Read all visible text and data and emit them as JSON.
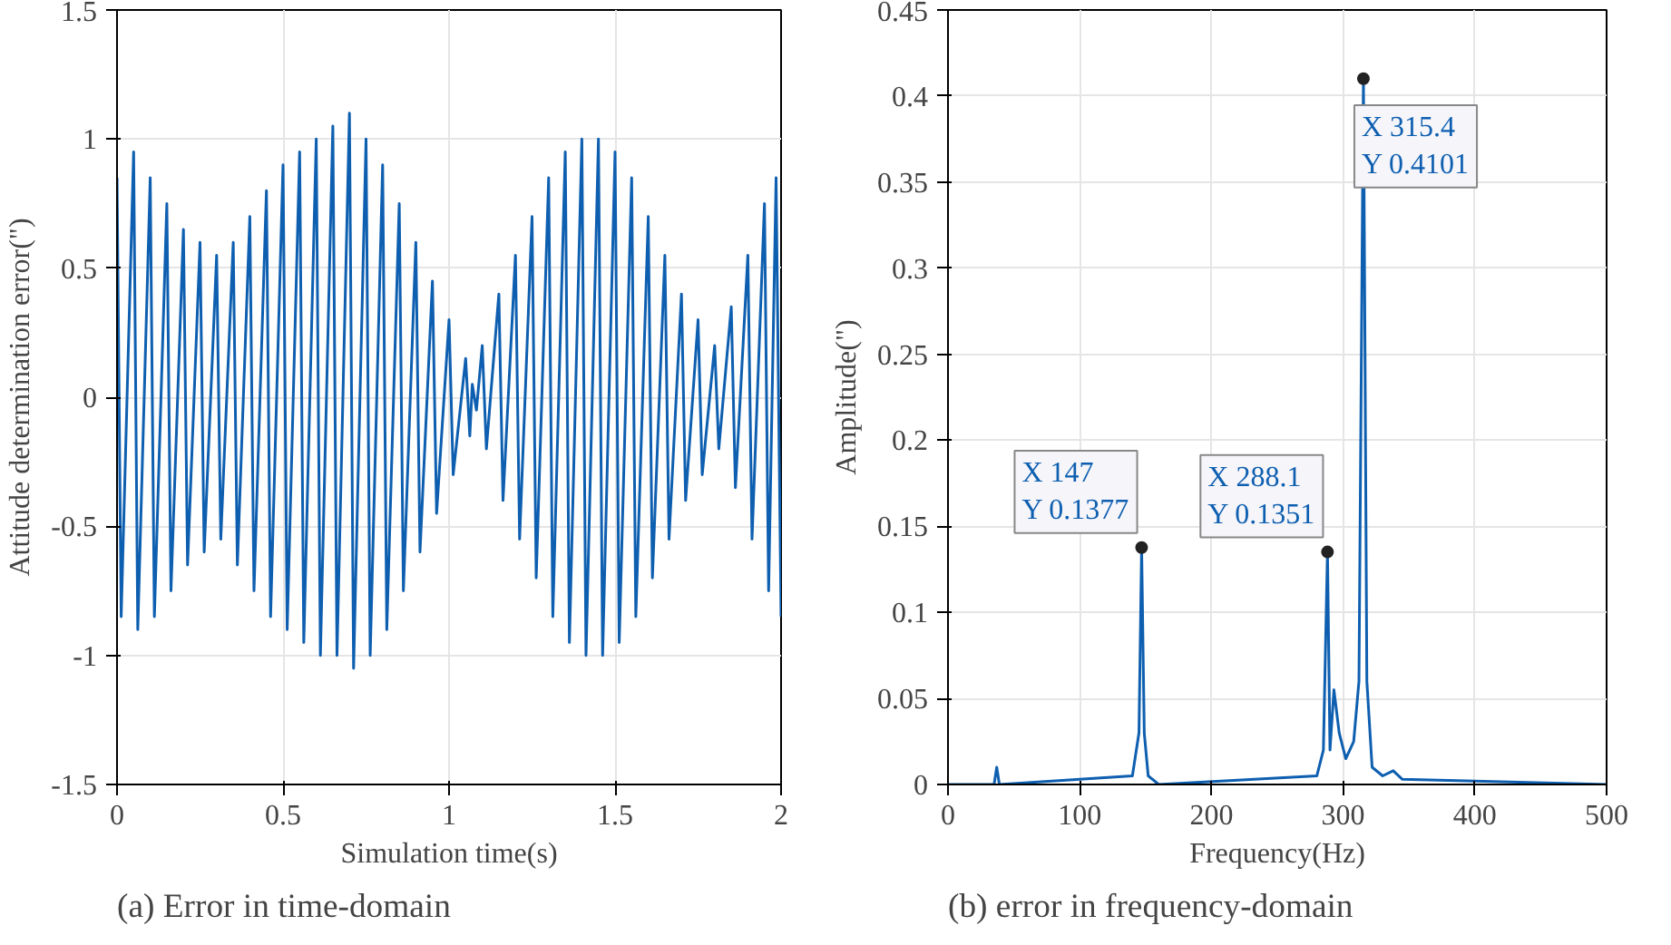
{
  "chart_data": [
    {
      "type": "line",
      "title": "(a) Error in time-domain",
      "xlabel": "Simulation time(s)",
      "ylabel": "Attitude determination error(\")",
      "xlim": [
        0,
        2
      ],
      "ylim": [
        -1.5,
        1.5
      ],
      "xticks": [
        0,
        0.5,
        1,
        1.5,
        2
      ],
      "yticks": [
        -1.5,
        -1,
        -0.5,
        0,
        0.5,
        1,
        1.5
      ],
      "grid": true,
      "series": [
        {
          "color": "#0e5fb0",
          "x": [
            0,
            0.0125,
            0.05,
            0.0625,
            0.1,
            0.1125,
            0.15,
            0.1625,
            0.2,
            0.2125,
            0.25,
            0.2625,
            0.3,
            0.3125,
            0.35,
            0.3625,
            0.4,
            0.4125,
            0.45,
            0.4625,
            0.5,
            0.5125,
            0.55,
            0.5625,
            0.6,
            0.6125,
            0.65,
            0.6625,
            0.7,
            0.7125,
            0.75,
            0.7625,
            0.8,
            0.8125,
            0.85,
            0.8625,
            0.9,
            0.9125,
            0.95,
            0.9625,
            1.0,
            1.0125,
            1.05,
            1.0625,
            1.07,
            1.0825,
            1.1,
            1.1125,
            1.15,
            1.1625,
            1.2,
            1.2125,
            1.25,
            1.2625,
            1.3,
            1.3125,
            1.35,
            1.3625,
            1.4,
            1.4125,
            1.45,
            1.4625,
            1.5,
            1.5125,
            1.55,
            1.5625,
            1.6,
            1.6125,
            1.65,
            1.6625,
            1.7,
            1.7125,
            1.75,
            1.7625,
            1.8,
            1.8125,
            1.85,
            1.8625,
            1.9,
            1.9125,
            1.95,
            1.9625,
            1.985,
            2.0
          ],
          "values": [
            0.85,
            -0.85,
            0.95,
            -0.9,
            0.85,
            -0.85,
            0.75,
            -0.75,
            0.65,
            -0.65,
            0.6,
            -0.6,
            0.55,
            -0.55,
            0.6,
            -0.65,
            0.7,
            -0.75,
            0.8,
            -0.85,
            0.9,
            -0.9,
            0.95,
            -0.95,
            1.0,
            -1.0,
            1.05,
            -1.0,
            1.1,
            -1.05,
            1.0,
            -1.0,
            0.9,
            -0.9,
            0.75,
            -0.75,
            0.6,
            -0.6,
            0.45,
            -0.45,
            0.3,
            -0.3,
            0.15,
            -0.15,
            0.05,
            -0.05,
            0.2,
            -0.2,
            0.4,
            -0.4,
            0.55,
            -0.55,
            0.7,
            -0.7,
            0.85,
            -0.85,
            0.95,
            -0.95,
            1.0,
            -1.0,
            1.0,
            -1.0,
            0.95,
            -0.95,
            0.85,
            -0.85,
            0.7,
            -0.7,
            0.55,
            -0.55,
            0.4,
            -0.4,
            0.3,
            -0.3,
            0.2,
            -0.2,
            0.35,
            -0.35,
            0.55,
            -0.55,
            0.75,
            -0.75,
            0.85,
            -0.85
          ]
        }
      ]
    },
    {
      "type": "line",
      "title": "(b) error in frequency-domain",
      "xlabel": "Frequency(Hz)",
      "ylabel": "Amplitude(\")",
      "xlim": [
        0,
        500
      ],
      "ylim": [
        0,
        0.45
      ],
      "xticks": [
        0,
        100,
        200,
        300,
        400,
        500
      ],
      "yticks": [
        0,
        0.05,
        0.1,
        0.15,
        0.2,
        0.25,
        0.3,
        0.35,
        0.4,
        0.45
      ],
      "grid": true,
      "series": [
        {
          "color": "#0e5fb0",
          "x": [
            0,
            35,
            37,
            39,
            140,
            145,
            147,
            149,
            152,
            160,
            280,
            285,
            288.1,
            290,
            293,
            297,
            302,
            308,
            312,
            315.4,
            318,
            322,
            330,
            338,
            345,
            400,
            500
          ],
          "values": [
            0,
            0,
            0.01,
            0,
            0.005,
            0.03,
            0.1377,
            0.03,
            0.005,
            0,
            0.005,
            0.02,
            0.1351,
            0.02,
            0.055,
            0.03,
            0.015,
            0.025,
            0.06,
            0.4101,
            0.06,
            0.01,
            0.005,
            0.008,
            0.003,
            0.002,
            0
          ]
        }
      ],
      "annotations": [
        {
          "text": "X 147\nY 0.1377",
          "x": 147,
          "y": 0.1377
        },
        {
          "text": "X 288.1\nY 0.1351",
          "x": 288.1,
          "y": 0.1351
        },
        {
          "text": "X 315.4\nY 0.4101",
          "x": 315.4,
          "y": 0.4101
        }
      ]
    }
  ]
}
